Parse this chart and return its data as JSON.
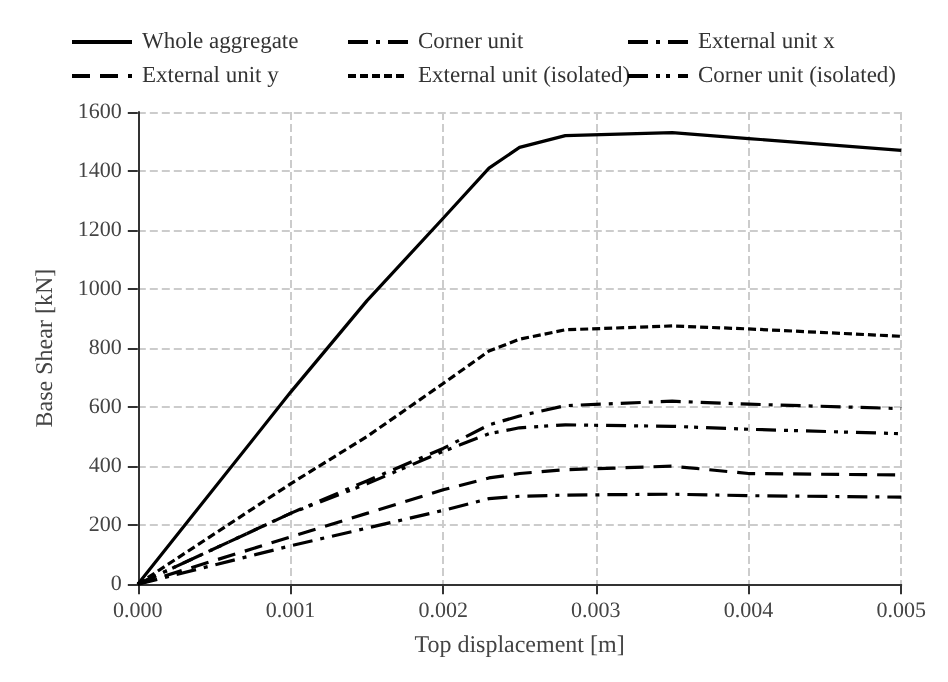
{
  "chart_data": {
    "type": "line",
    "xlabel": "Top displacement [m]",
    "ylabel": "Base Shear [kN]",
    "xlim": [
      0,
      0.005
    ],
    "xticks": [
      {
        "value": 0,
        "label": "0.000"
      },
      {
        "value": 0.001,
        "label": "0.001"
      },
      {
        "value": 0.002,
        "label": "0.002"
      },
      {
        "value": 0.003,
        "label": "0.003"
      },
      {
        "value": 0.004,
        "label": "0.004"
      },
      {
        "value": 0.005,
        "label": "0.005"
      }
    ],
    "ylim": [
      0,
      1600
    ],
    "yticks": [
      0,
      200,
      400,
      600,
      800,
      1000,
      1200,
      1400,
      1600
    ],
    "grid": true,
    "legend": "top",
    "marker": "none",
    "x": [
      0,
      0.001,
      0.0015,
      0.002,
      0.0023,
      0.0025,
      0.0028,
      0.0035,
      0.004,
      0.005
    ],
    "series": [
      {
        "name": "Whole aggregate",
        "color": "#000000",
        "line_style": "solid",
        "values": [
          0,
          650,
          960,
          1240,
          1410,
          1480,
          1520,
          1530,
          1510,
          1470
        ]
      },
      {
        "name": "Corner unit",
        "color": "#000000",
        "line_style": "dashdot",
        "values": [
          0,
          130,
          190,
          250,
          290,
          298,
          302,
          305,
          300,
          295
        ]
      },
      {
        "name": "External unit x",
        "color": "#000000",
        "line_style": "dashdot",
        "values": [
          0,
          240,
          350,
          460,
          540,
          570,
          605,
          620,
          610,
          595
        ]
      },
      {
        "name": "External unit y",
        "color": "#000000",
        "line_style": "dashed",
        "values": [
          0,
          160,
          240,
          320,
          360,
          375,
          388,
          400,
          375,
          370
        ]
      },
      {
        "name": "External unit (isolated)",
        "color": "#000000",
        "line_style": "dotted",
        "values": [
          0,
          340,
          500,
          680,
          790,
          830,
          862,
          875,
          865,
          840
        ]
      },
      {
        "name": "Corner unit (isolated)",
        "color": "#000000",
        "line_style": "dashdotdot",
        "values": [
          0,
          240,
          340,
          450,
          510,
          530,
          540,
          535,
          525,
          510
        ]
      }
    ]
  }
}
